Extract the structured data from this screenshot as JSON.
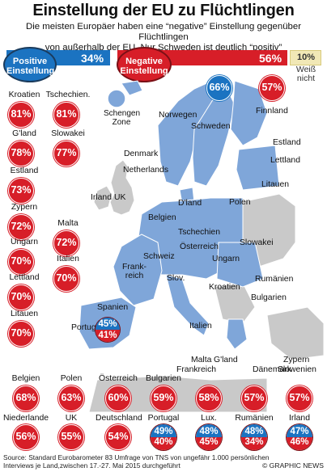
{
  "title": "Einstellung der EU zu Flüchtlingen",
  "subtitle_line1": "Die meisten Europäer haben eine “negative” Einstellung gegenüber Flüchtlingen",
  "subtitle_line2": "von außerhalb der EU. Nur Schweden ist deutlich “positiv”",
  "summary": {
    "positive_label_1": "Positive",
    "positive_label_2": "Einstellung",
    "positive_value": "34%",
    "negative_label_1": "Negative",
    "negative_label_2": "Einstellung",
    "negative_value": "56%",
    "dontknow_value": "10%",
    "dontknow_label_1": "Weiß",
    "dontknow_label_2": "nicht"
  },
  "colors": {
    "positive": "#1b73c1",
    "negative": "#d71e28",
    "dontknow": "#f1e8b6",
    "schengen": "#7fa6d9",
    "non_schengen": "#c9c9c9",
    "sea": "#ffffff"
  },
  "map": {
    "schengen_label_1": "Schengen",
    "schengen_label_2": "Zone",
    "labels": {
      "norwegen": "Norwegen",
      "schweden": "Schweden",
      "finnland": "Finnland",
      "estland": "Estland",
      "lettland": "Lettland",
      "litauen": "Litauen",
      "denmark": "Denmark",
      "netherlands": "Netherlands",
      "irland": "Irland",
      "uk": "UK",
      "dland": "D'land",
      "polen": "Polen",
      "belgien": "Belgien",
      "tschechien": "Tschechien",
      "slowakei": "Slowakei",
      "oesterreich": "Österreich",
      "schweiz": "Schweiz",
      "ungarn": "Ungarn",
      "frankreich": "Frank-",
      "frankreich2": "reich",
      "slov": "Slov.",
      "kroatien": "Kroatien",
      "rumaenien": "Rumänien",
      "bulgarien": "Bulgarien",
      "spanien": "Spanien",
      "portugal": "Portugal",
      "italien": "Italien",
      "griechenland": "G'land",
      "malta": "Malta",
      "zypern": "Zypern"
    },
    "bubbles": {
      "schweden": "66%",
      "finnland": "57%",
      "spanien_pos": "45%",
      "spanien_neg": "41%"
    }
  },
  "chart_data": {
    "type": "table",
    "title": "Einstellung der EU zu Flüchtlingen",
    "unit": "%",
    "eu_average": {
      "Positive Einstellung": 34,
      "Negative Einstellung": 56,
      "Weiß nicht": 10
    },
    "countries": [
      {
        "name": "Kroatien",
        "negative": 81
      },
      {
        "name": "Tschechien.",
        "negative": 81
      },
      {
        "name": "G'land",
        "negative": 78
      },
      {
        "name": "Slowakei",
        "negative": 77
      },
      {
        "name": "Estland",
        "negative": 73
      },
      {
        "name": "Zypern",
        "negative": 72
      },
      {
        "name": "Malta",
        "negative": 72
      },
      {
        "name": "Ungarn",
        "negative": 70
      },
      {
        "name": "Italien",
        "negative": 70
      },
      {
        "name": "Lettland",
        "negative": 70
      },
      {
        "name": "Litauen",
        "negative": 70
      },
      {
        "name": "Belgien",
        "negative": 68
      },
      {
        "name": "Polen",
        "negative": 63
      },
      {
        "name": "Österreich",
        "negative": 60
      },
      {
        "name": "Bulgarien",
        "negative": 59
      },
      {
        "name": "Frankreich",
        "negative": 58
      },
      {
        "name": "Dänemark",
        "negative": 57
      },
      {
        "name": "Slowenien",
        "negative": 57
      },
      {
        "name": "Finnland",
        "negative": 57
      },
      {
        "name": "Niederlande",
        "negative": 56
      },
      {
        "name": "UK",
        "negative": 55
      },
      {
        "name": "Deutschland",
        "negative": 54
      },
      {
        "name": "Portugal",
        "positive": 49,
        "negative": 40
      },
      {
        "name": "Lux.",
        "positive": 48,
        "negative": 45
      },
      {
        "name": "Rumänien",
        "positive": 48,
        "negative": 34
      },
      {
        "name": "Irland",
        "positive": 47,
        "negative": 46
      },
      {
        "name": "Spanien",
        "positive": 45,
        "negative": 41
      },
      {
        "name": "Schweden",
        "positive": 66
      }
    ]
  },
  "left_column": [
    {
      "name": "Kroatien",
      "value": "81%"
    },
    {
      "name": "G'land",
      "value": "78%"
    },
    {
      "name": "Estland",
      "value": "73%"
    },
    {
      "name": "Zypern",
      "value": "72%"
    },
    {
      "name": "Ungarn",
      "value": "70%"
    },
    {
      "name": "Lettland",
      "value": "70%"
    },
    {
      "name": "Litauen",
      "value": "70%"
    }
  ],
  "second_column": [
    {
      "name": "Tschechien.",
      "value": "81%"
    },
    {
      "name": "Slowakei",
      "value": "77%"
    },
    {
      "name": "Malta",
      "value": "72%"
    },
    {
      "name": "Italien",
      "value": "70%"
    }
  ],
  "bottom_row1": [
    {
      "name": "Belgien",
      "value": "68%"
    },
    {
      "name": "Polen",
      "value": "63%"
    },
    {
      "name": "Österreich",
      "value": "60%"
    },
    {
      "name": "Bulgarien",
      "value": "59%"
    },
    {
      "name": "Frankreich",
      "value": "58%"
    },
    {
      "name": "Dänemark",
      "value": "57%"
    },
    {
      "name": "Slowenien",
      "value": "57%"
    }
  ],
  "bottom_row2": [
    {
      "name": "Niederlande",
      "value": "56%"
    },
    {
      "name": "UK",
      "value": "55%"
    },
    {
      "name": "Deutschland",
      "value": "54%"
    },
    {
      "name": "Portugal",
      "pos": "49%",
      "neg": "40%"
    },
    {
      "name": "Lux.",
      "pos": "48%",
      "neg": "45%"
    },
    {
      "name": "Rumänien",
      "pos": "48%",
      "neg": "34%"
    },
    {
      "name": "Irland",
      "pos": "47%",
      "neg": "46%"
    }
  ],
  "mid_labels": {
    "g_land": "G'land",
    "daenemark": "Dänemark",
    "zypern": "Zypern",
    "slowenien": "Slowenien",
    "malta": "Malta",
    "frankreich": "Frankreich"
  },
  "footer": {
    "source": "Source: Standard Eurobarometer 83 Umfrage von TNS von ungefähr 1.000 persönlichen",
    "source2": "Interviews je Land,zwischen 17.-27. Mai 2015 durchgeführt",
    "credit": "© GRAPHIC NEWS"
  }
}
